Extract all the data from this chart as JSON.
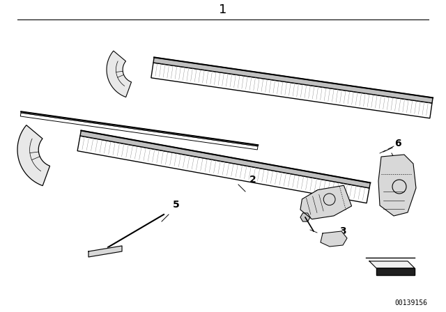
{
  "title": "1",
  "bg_color": "#ffffff",
  "line_color": "#000000",
  "fig_width": 6.4,
  "fig_height": 4.48,
  "dpi": 100,
  "watermark": "00139156"
}
